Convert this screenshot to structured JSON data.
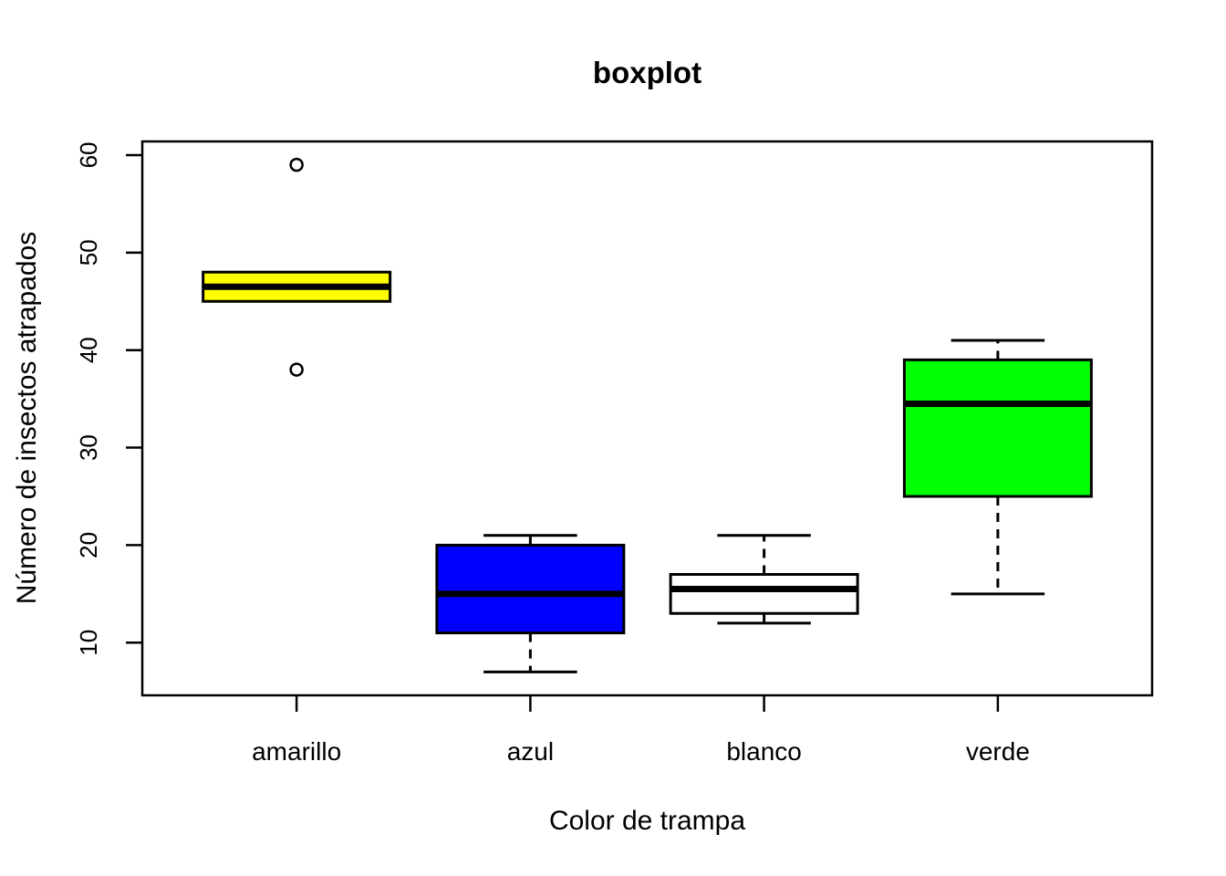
{
  "page": {
    "background": "#ffffff"
  },
  "chart_data": {
    "type": "boxplot",
    "title": "boxplot",
    "xlabel": "Color de trampa",
    "ylabel": "Número de insectos atrapados",
    "categories": [
      "amarillo",
      "azul",
      "blanco",
      "verde"
    ],
    "series": [
      {
        "name": "amarillo",
        "color": "#FFFF00",
        "whisker_low": 45,
        "q1": 45,
        "median": 46.5,
        "q3": 48,
        "whisker_high": 48,
        "outliers": [
          38,
          59
        ]
      },
      {
        "name": "azul",
        "color": "#0000FF",
        "whisker_low": 7,
        "q1": 11,
        "median": 15,
        "q3": 20,
        "whisker_high": 21,
        "outliers": []
      },
      {
        "name": "blanco",
        "color": "#FFFFFF",
        "whisker_low": 12,
        "q1": 13,
        "median": 15.5,
        "q3": 17,
        "whisker_high": 21,
        "outliers": []
      },
      {
        "name": "verde",
        "color": "#00FF00",
        "whisker_low": 15,
        "q1": 25,
        "median": 34.5,
        "q3": 39,
        "whisker_high": 41,
        "outliers": []
      }
    ],
    "yticks": [
      10,
      20,
      30,
      40,
      50,
      60
    ],
    "ylim": [
      4.6,
      61.4
    ],
    "xlim": [
      0.34,
      4.66
    ],
    "grid": false,
    "legend": "none",
    "axis_color": "#000000",
    "median_color": "#000000"
  }
}
